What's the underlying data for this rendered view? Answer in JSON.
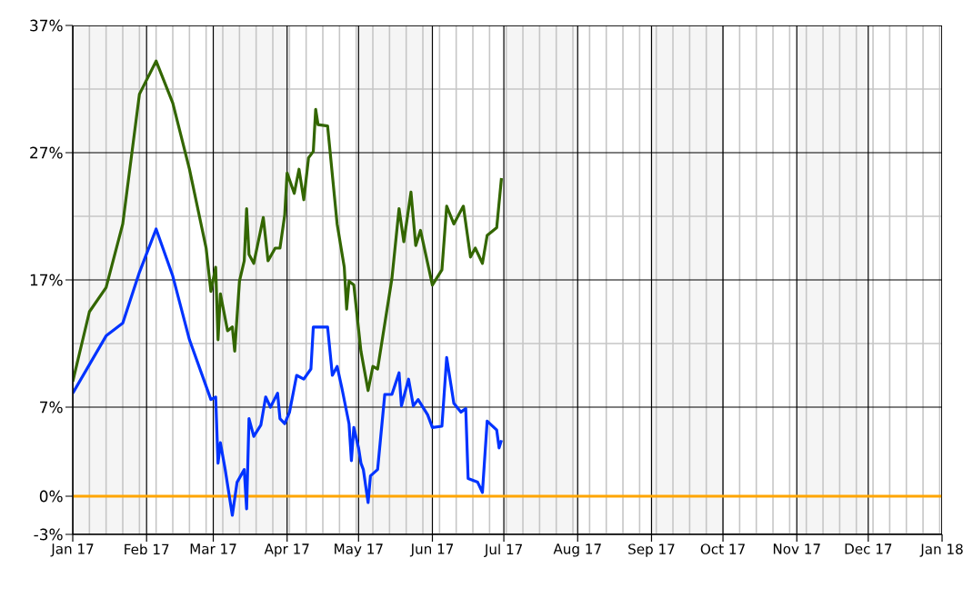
{
  "chart_data": {
    "type": "line",
    "xlim": [
      "2017-01-01",
      "2018-01-01"
    ],
    "ylim": [
      -3,
      37
    ],
    "xticks": [
      {
        "value": "2017-01-01",
        "label": "Jan 17"
      },
      {
        "value": "2017-02-01",
        "label": "Feb 17"
      },
      {
        "value": "2017-03-01",
        "label": "Mar 17"
      },
      {
        "value": "2017-04-01",
        "label": "Apr 17"
      },
      {
        "value": "2017-05-01",
        "label": "May 17"
      },
      {
        "value": "2017-06-01",
        "label": "Jun 17"
      },
      {
        "value": "2017-07-01",
        "label": "Jul 17"
      },
      {
        "value": "2017-08-01",
        "label": "Aug 17"
      },
      {
        "value": "2017-09-01",
        "label": "Sep 17"
      },
      {
        "value": "2017-10-01",
        "label": "Oct 17"
      },
      {
        "value": "2017-11-01",
        "label": "Nov 17"
      },
      {
        "value": "2017-12-01",
        "label": "Dec 17"
      },
      {
        "value": "2018-01-01",
        "label": "Jan 18"
      }
    ],
    "yticks": [
      {
        "value": -3,
        "label": "-3%"
      },
      {
        "value": 0,
        "label": "0%"
      },
      {
        "value": 7,
        "label": "7%"
      },
      {
        "value": 17,
        "label": "17%"
      },
      {
        "value": 27,
        "label": "27%"
      },
      {
        "value": 37,
        "label": "37%"
      }
    ],
    "grid": true,
    "bands": [
      {
        "axis": "x",
        "from": "2017-01-01",
        "to": "2017-02-01",
        "color": "#f5f5f5"
      },
      {
        "axis": "x",
        "from": "2017-03-01",
        "to": "2017-04-01",
        "color": "#f5f5f5"
      },
      {
        "axis": "x",
        "from": "2017-05-01",
        "to": "2017-06-01",
        "color": "#f5f5f5"
      },
      {
        "axis": "x",
        "from": "2017-07-01",
        "to": "2017-08-01",
        "color": "#f5f5f5"
      },
      {
        "axis": "x",
        "from": "2017-09-01",
        "to": "2017-10-01",
        "color": "#f5f5f5"
      },
      {
        "axis": "x",
        "from": "2017-11-01",
        "to": "2017-12-01",
        "color": "#f5f5f5"
      }
    ],
    "ref_lines": [
      {
        "axis": "y",
        "value": 0,
        "color": "#ffa500"
      }
    ],
    "series": [
      {
        "color": "#336600",
        "x": [
          "2017-01-01",
          "2017-01-08",
          "2017-01-15",
          "2017-01-22",
          "2017-01-29",
          "2017-02-05",
          "2017-02-12",
          "2017-02-19",
          "2017-02-26",
          "2017-02-28",
          "2017-03-02",
          "2017-03-03",
          "2017-03-04",
          "2017-03-07",
          "2017-03-09",
          "2017-03-10",
          "2017-03-12",
          "2017-03-14",
          "2017-03-15",
          "2017-03-16",
          "2017-03-18",
          "2017-03-22",
          "2017-03-24",
          "2017-03-27",
          "2017-03-29",
          "2017-03-31",
          "2017-04-01",
          "2017-04-04",
          "2017-04-06",
          "2017-04-08",
          "2017-04-10",
          "2017-04-12",
          "2017-04-13",
          "2017-04-14",
          "2017-04-18",
          "2017-04-22",
          "2017-04-25",
          "2017-04-26",
          "2017-04-27",
          "2017-04-29",
          "2017-05-02",
          "2017-05-05",
          "2017-05-07",
          "2017-05-09",
          "2017-05-15",
          "2017-05-18",
          "2017-05-20",
          "2017-05-23",
          "2017-05-25",
          "2017-05-27",
          "2017-06-01",
          "2017-06-05",
          "2017-06-07",
          "2017-06-10",
          "2017-06-14",
          "2017-06-17",
          "2017-06-19",
          "2017-06-22",
          "2017-06-24",
          "2017-06-28",
          "2017-06-30"
        ],
        "values": [
          9.0,
          14.5,
          16.4,
          21.4,
          31.6,
          34.2,
          30.9,
          25.7,
          19.5,
          16.1,
          18.0,
          12.3,
          15.9,
          13.0,
          13.3,
          11.4,
          16.9,
          18.5,
          22.6,
          19.0,
          18.3,
          21.9,
          18.5,
          19.5,
          19.5,
          22.1,
          25.4,
          23.8,
          25.7,
          23.3,
          26.6,
          27.1,
          30.4,
          29.2,
          29.1,
          21.4,
          18.0,
          14.7,
          16.9,
          16.6,
          11.4,
          8.3,
          10.2,
          10.0,
          17.1,
          22.6,
          20.0,
          23.9,
          19.7,
          20.9,
          16.6,
          17.8,
          22.8,
          21.4,
          22.8,
          18.8,
          19.5,
          18.3,
          20.5,
          21.1,
          25.0
        ]
      },
      {
        "color": "#0033ff",
        "x": [
          "2017-01-01",
          "2017-01-15",
          "2017-01-22",
          "2017-01-29",
          "2017-02-05",
          "2017-02-12",
          "2017-02-19",
          "2017-02-28",
          "2017-03-02",
          "2017-03-03",
          "2017-03-04",
          "2017-03-06",
          "2017-03-09",
          "2017-03-11",
          "2017-03-14",
          "2017-03-15",
          "2017-03-16",
          "2017-03-18",
          "2017-03-21",
          "2017-03-23",
          "2017-03-25",
          "2017-03-28",
          "2017-03-29",
          "2017-03-31",
          "2017-04-02",
          "2017-04-05",
          "2017-04-08",
          "2017-04-11",
          "2017-04-12",
          "2017-04-18",
          "2017-04-20",
          "2017-04-22",
          "2017-04-24",
          "2017-04-27",
          "2017-04-28",
          "2017-04-29",
          "2017-05-01",
          "2017-05-02",
          "2017-05-03",
          "2017-05-05",
          "2017-05-06",
          "2017-05-09",
          "2017-05-12",
          "2017-05-15",
          "2017-05-18",
          "2017-05-19",
          "2017-05-22",
          "2017-05-24",
          "2017-05-26",
          "2017-05-30",
          "2017-06-01",
          "2017-06-05",
          "2017-06-07",
          "2017-06-10",
          "2017-06-13",
          "2017-06-15",
          "2017-06-16",
          "2017-06-20",
          "2017-06-22",
          "2017-06-24",
          "2017-06-28",
          "2017-06-29",
          "2017-06-30"
        ],
        "values": [
          8.1,
          12.6,
          13.6,
          17.6,
          21.0,
          17.3,
          12.3,
          7.6,
          7.8,
          2.6,
          4.2,
          2.1,
          -1.5,
          1.1,
          2.1,
          -1.0,
          6.1,
          4.7,
          5.6,
          7.8,
          7.0,
          8.1,
          6.1,
          5.7,
          6.6,
          9.5,
          9.2,
          10.0,
          13.3,
          13.3,
          9.5,
          10.2,
          8.5,
          5.7,
          2.8,
          5.4,
          3.8,
          2.6,
          2.1,
          -0.5,
          1.6,
          2.1,
          8.0,
          8.0,
          9.7,
          7.1,
          9.2,
          7.1,
          7.6,
          6.4,
          5.4,
          5.5,
          10.9,
          7.3,
          6.6,
          6.9,
          1.4,
          1.1,
          0.3,
          5.9,
          5.2,
          3.8,
          4.4
        ]
      }
    ]
  }
}
